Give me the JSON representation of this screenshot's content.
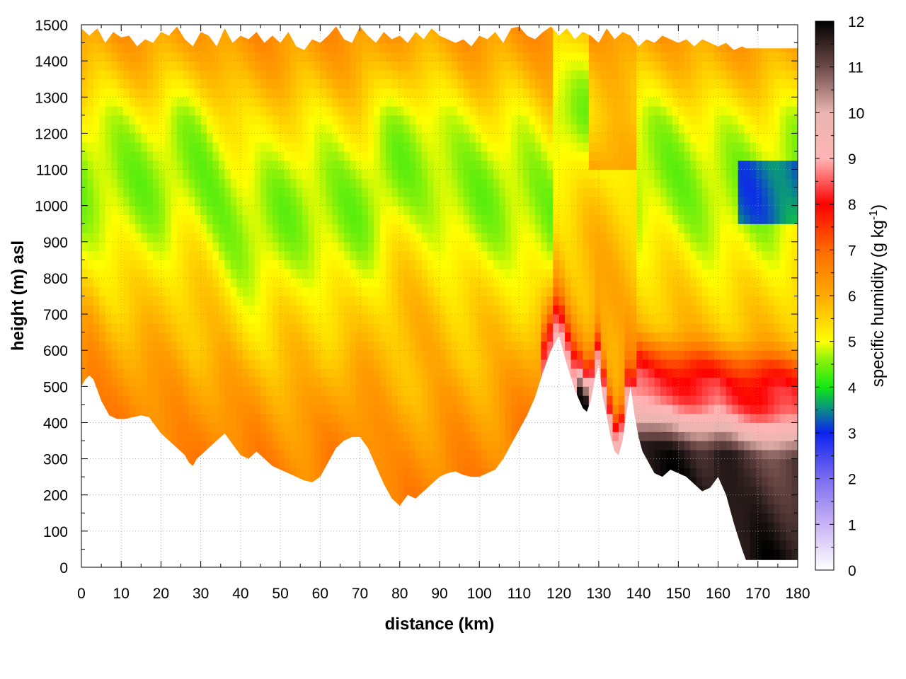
{
  "chart_data": {
    "type": "heatmap",
    "title": "",
    "xlabel": "distance (km)",
    "ylabel": "height (m) asl",
    "xlim": [
      0,
      180
    ],
    "ylim": [
      0,
      1500
    ],
    "x_ticks": [
      0,
      10,
      20,
      30,
      40,
      50,
      60,
      70,
      80,
      90,
      100,
      110,
      120,
      130,
      140,
      150,
      160,
      170,
      180
    ],
    "y_ticks": [
      0,
      100,
      200,
      300,
      400,
      500,
      600,
      700,
      800,
      900,
      1000,
      1100,
      1200,
      1300,
      1400,
      1500
    ],
    "grid": true,
    "colorbar": {
      "label_main": "specific humidity (g kg",
      "label_sup": "-1",
      "label_end": ")",
      "range": [
        0,
        12
      ],
      "ticks": [
        0,
        1,
        2,
        3,
        4,
        5,
        6,
        7,
        8,
        9,
        10,
        11,
        12
      ],
      "colormap": [
        [
          0,
          "#ffffff"
        ],
        [
          1,
          "#c9b3f5"
        ],
        [
          2,
          "#7a6cf0"
        ],
        [
          3,
          "#0c22f0"
        ],
        [
          3.5,
          "#0a8a8a"
        ],
        [
          4,
          "#12e812"
        ],
        [
          4.6,
          "#8cf20a"
        ],
        [
          5,
          "#ffff00"
        ],
        [
          5.5,
          "#ffd200"
        ],
        [
          6,
          "#ffaa00"
        ],
        [
          7,
          "#ff6a00"
        ],
        [
          8,
          "#ff0000"
        ],
        [
          9,
          "#ffb5b5"
        ],
        [
          10,
          "#e9b5b0"
        ],
        [
          11,
          "#6d4a48"
        ],
        [
          12,
          "#000000"
        ]
      ]
    },
    "lower_boundary": {
      "x": [
        0,
        1,
        2,
        3,
        5,
        7,
        9,
        11,
        13,
        15,
        17,
        20,
        22,
        24,
        26,
        27,
        28,
        29,
        30,
        32,
        34,
        36,
        38,
        40,
        42,
        44,
        46,
        48,
        50,
        52,
        54,
        56,
        58,
        60,
        62,
        64,
        66,
        68,
        70,
        72,
        74,
        76,
        78,
        80,
        82,
        84,
        86,
        88,
        90,
        92,
        94,
        96,
        98,
        100,
        102,
        104,
        106,
        108,
        110,
        112,
        114,
        116,
        118,
        120,
        122,
        124,
        126,
        127,
        128,
        129,
        130,
        131,
        132,
        133,
        134,
        135,
        136,
        137,
        138,
        139,
        140,
        141,
        142,
        144,
        146,
        148,
        150,
        152,
        154,
        156,
        158,
        160,
        162,
        164,
        166,
        167,
        180
      ],
      "y": [
        500,
        520,
        530,
        520,
        460,
        420,
        410,
        410,
        415,
        420,
        415,
        370,
        350,
        330,
        310,
        290,
        280,
        300,
        310,
        330,
        350,
        370,
        340,
        310,
        300,
        320,
        300,
        280,
        270,
        260,
        250,
        240,
        235,
        250,
        290,
        330,
        350,
        360,
        360,
        330,
        280,
        230,
        190,
        170,
        200,
        190,
        210,
        230,
        250,
        260,
        265,
        255,
        250,
        250,
        260,
        270,
        300,
        340,
        380,
        420,
        470,
        540,
        600,
        640,
        560,
        490,
        440,
        430,
        460,
        520,
        560,
        470,
        420,
        360,
        320,
        310,
        350,
        430,
        500,
        420,
        360,
        320,
        300,
        260,
        250,
        270,
        260,
        250,
        230,
        210,
        220,
        250,
        200,
        120,
        50,
        20,
        20
      ]
    },
    "top_boundary": {
      "x": [
        0,
        2,
        4,
        6,
        8,
        10,
        12,
        14,
        16,
        18,
        20,
        22,
        24,
        26,
        28,
        30,
        32,
        34,
        36,
        38,
        40,
        42,
        44,
        46,
        48,
        50,
        52,
        54,
        56,
        58,
        60,
        62,
        64,
        66,
        68,
        70,
        72,
        74,
        76,
        78,
        80,
        82,
        84,
        86,
        88,
        90,
        92,
        94,
        96,
        98,
        100,
        102,
        104,
        106,
        108,
        110,
        112,
        114,
        116,
        118,
        120,
        122,
        124,
        126,
        128,
        130,
        132,
        134,
        136,
        138,
        140,
        142,
        144,
        146,
        148,
        150,
        152,
        154,
        156,
        158,
        160,
        162,
        164,
        166,
        167,
        180
      ],
      "y": [
        1490,
        1470,
        1490,
        1450,
        1480,
        1465,
        1470,
        1440,
        1460,
        1450,
        1480,
        1470,
        1495,
        1460,
        1440,
        1480,
        1470,
        1440,
        1490,
        1450,
        1470,
        1460,
        1480,
        1450,
        1470,
        1450,
        1480,
        1440,
        1430,
        1460,
        1450,
        1470,
        1495,
        1460,
        1450,
        1495,
        1470,
        1450,
        1480,
        1460,
        1470,
        1450,
        1480,
        1460,
        1490,
        1470,
        1460,
        1450,
        1460,
        1440,
        1470,
        1460,
        1480,
        1450,
        1490,
        1495,
        1470,
        1460,
        1480,
        1495,
        1470,
        1490,
        1460,
        1480,
        1470,
        1450,
        1490,
        1460,
        1480,
        1470,
        1440,
        1460,
        1450,
        1470,
        1460,
        1450,
        1460,
        1440,
        1460,
        1450,
        1440,
        1450,
        1430,
        1440,
        1435,
        1435
      ]
    }
  }
}
